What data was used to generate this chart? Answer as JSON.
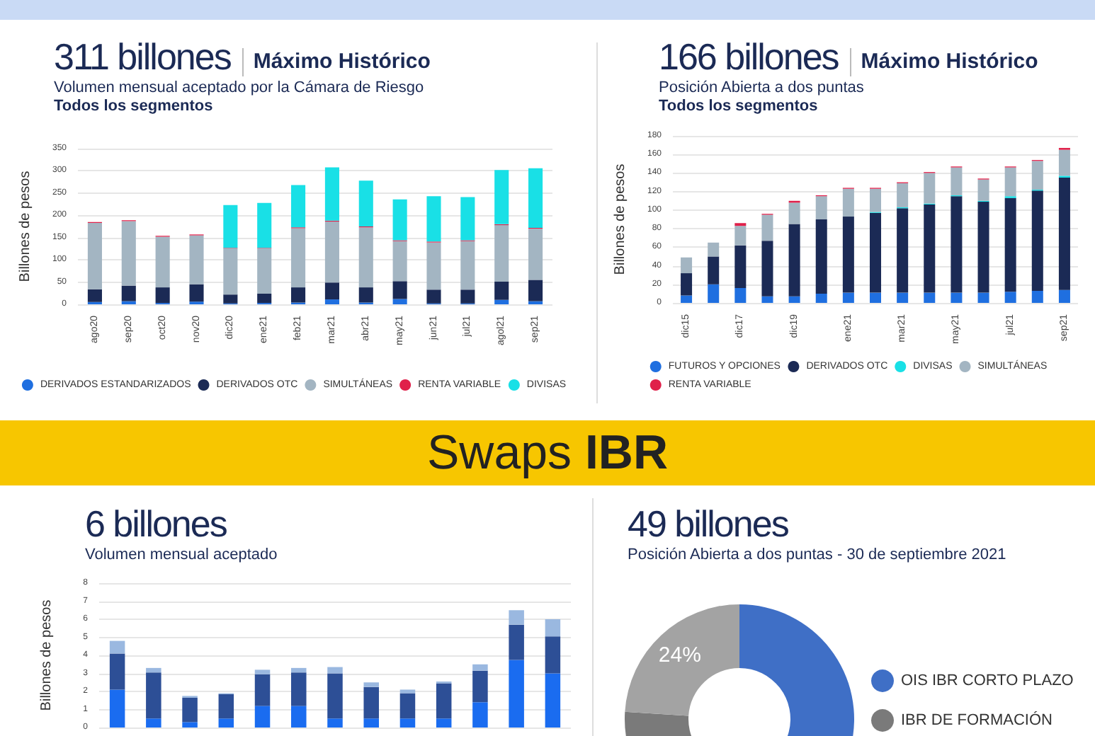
{
  "chart_data": [
    {
      "type": "bar",
      "title": "311 billones",
      "subtitle": "Volumen mensual aceptado por la Cámara de Riesgo",
      "annotations": [
        "Máximo Histórico",
        "Todos los segmentos"
      ],
      "ylabel": "Billones de pesos",
      "stacked": true,
      "categories": [
        "ago20",
        "sep20",
        "oct20",
        "nov20",
        "dic20",
        "ene21",
        "feb21",
        "mar21",
        "abr21",
        "may21",
        "jun21",
        "jul21",
        "agol21",
        "sep21"
      ],
      "series": [
        {
          "name": "DERIVADOS ESTANDARIZADOS",
          "color": "#1f6fe0",
          "values": [
            5,
            7,
            3,
            6,
            2,
            3,
            4,
            11,
            4,
            12,
            2,
            2,
            10,
            7
          ]
        },
        {
          "name": "DERIVADOS OTC",
          "color": "#1b2a55",
          "values": [
            29,
            35,
            35,
            39,
            20,
            21,
            34,
            38,
            34,
            40,
            31,
            31,
            41,
            48
          ]
        },
        {
          "name": "SIMULTÁNEAS",
          "color": "#a3b5c2",
          "values": [
            149,
            145,
            114,
            110,
            104,
            102,
            133,
            137,
            135,
            90,
            106,
            109,
            127,
            115
          ]
        },
        {
          "name": "RENTA VARIABLE",
          "color": "#e0204a",
          "values": [
            2,
            2,
            2,
            2,
            1,
            1,
            2,
            2,
            2,
            2,
            2,
            2,
            2,
            2
          ]
        },
        {
          "name": "DIVISAS",
          "color": "#19e0e6",
          "values": [
            0,
            0,
            0,
            0,
            96,
            101,
            95,
            120,
            103,
            92,
            102,
            97,
            122,
            134
          ]
        }
      ],
      "ylim": [
        0,
        350
      ],
      "yticks": [
        0,
        50,
        100,
        150,
        200,
        250,
        300,
        350
      ],
      "grid": "y",
      "legend": "bottom"
    },
    {
      "type": "bar",
      "title": "166 billones",
      "subtitle": "Posición Abierta a dos puntas",
      "annotations": [
        "Máximo Histórico",
        "Todos los segmentos"
      ],
      "ylabel": "Billones de pesos",
      "stacked": true,
      "categories": [
        "dic15",
        null,
        "dic17",
        null,
        "dic19",
        null,
        "ene21",
        null,
        "mar21",
        null,
        "may21",
        null,
        "jul21",
        null,
        "sep21"
      ],
      "series": [
        {
          "name": "FUTUROS Y OPCIONES",
          "color": "#1f6fe0",
          "values": [
            8,
            20,
            16,
            7,
            7,
            10,
            11,
            11,
            11,
            11,
            11,
            11,
            12,
            13,
            14
          ]
        },
        {
          "name": "DERIVADOS OTC",
          "color": "#1b2a55",
          "values": [
            24,
            30,
            46,
            60,
            78,
            80,
            82,
            86,
            91,
            95,
            104,
            98,
            101,
            108,
            121
          ]
        },
        {
          "name": "DIVISAS",
          "color": "#19e0e6",
          "values": [
            0,
            0,
            0,
            0,
            0,
            0,
            0,
            1,
            1,
            1,
            1,
            1,
            2,
            1,
            2
          ]
        },
        {
          "name": "SIMULTÁNEAS",
          "color": "#a3b5c2",
          "values": [
            17,
            15,
            21,
            28,
            23,
            25,
            30,
            25,
            26,
            33,
            30,
            23,
            31,
            31,
            28
          ]
        },
        {
          "name": "RENTA VARIABLE",
          "color": "#e0204a",
          "values": [
            0,
            0,
            3,
            1,
            2,
            1,
            1,
            1,
            1,
            1,
            1,
            1,
            1,
            1,
            2
          ]
        }
      ],
      "ylim": [
        0,
        180
      ],
      "yticks": [
        0,
        20,
        40,
        60,
        80,
        100,
        120,
        140,
        160,
        180
      ],
      "grid": "y",
      "legend": "bottom"
    },
    {
      "type": "bar",
      "title": "6 billones",
      "subtitle": "Volumen mensual aceptado",
      "annotations": [
        "Swaps IBR"
      ],
      "ylabel": "Billones de pesos",
      "stacked": true,
      "categories": [
        null,
        null,
        null,
        null,
        null,
        null,
        null,
        null,
        null,
        null,
        null,
        null,
        null
      ],
      "series": [
        {
          "color": "#1a6cf0",
          "values": [
            2.1,
            0.5,
            0.3,
            0.5,
            1.2,
            1.2,
            0.5,
            0.5,
            0.5,
            0.5,
            1.4,
            3.75,
            3.0
          ]
        },
        {
          "color": "#2d4f96",
          "values": [
            2.0,
            2.55,
            1.35,
            1.35,
            1.75,
            1.85,
            2.5,
            1.75,
            1.4,
            1.95,
            1.75,
            1.95,
            2.05
          ]
        },
        {
          "color": "#9ab8e0",
          "values": [
            0.7,
            0.25,
            0.1,
            0.05,
            0.25,
            0.25,
            0.35,
            0.25,
            0.2,
            0.1,
            0.35,
            0.8,
            0.95
          ]
        }
      ],
      "ylim": [
        0,
        8
      ],
      "yticks": [
        0,
        1,
        2,
        3,
        4,
        5,
        6,
        7,
        8
      ],
      "grid": "y",
      "tick_labels": "y"
    },
    {
      "type": "donut",
      "title": "49 billones",
      "subtitle": "Posición Abierta a dos puntas -  30 de septiembre 2021",
      "categories": [
        "OIS IBR CORTO PLAZO",
        "IBR DE FORMACIÓN",
        null
      ],
      "values": [
        58,
        18,
        24
      ],
      "colors": [
        "#3f6fc6",
        "#7a7a7a",
        "#a3a3a3"
      ],
      "value_labels": [
        null,
        null,
        "24%"
      ],
      "legend": "right"
    }
  ]
}
